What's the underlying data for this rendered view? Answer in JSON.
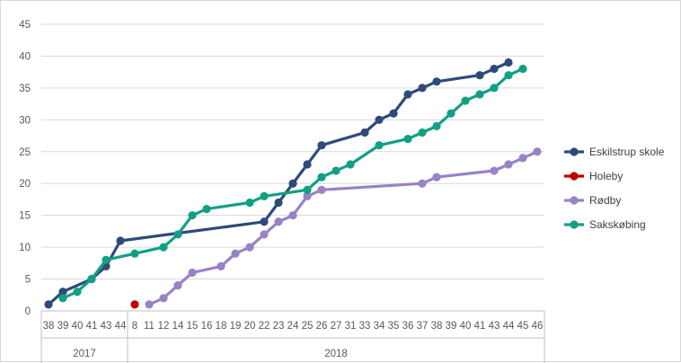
{
  "chart_data": {
    "type": "line",
    "title": "",
    "xlabel": "",
    "ylabel": "",
    "ylim": [
      0,
      45
    ],
    "yticks": [
      0,
      5,
      10,
      15,
      20,
      25,
      30,
      35,
      40,
      45
    ],
    "grid": true,
    "legend_position": "right",
    "categories": [
      "38",
      "39",
      "40",
      "41",
      "43",
      "44",
      "8",
      "11",
      "12",
      "14",
      "15",
      "16",
      "18",
      "19",
      "20",
      "22",
      "23",
      "24",
      "25",
      "26",
      "27",
      "31",
      "33",
      "34",
      "35",
      "36",
      "37",
      "38",
      "39",
      "40",
      "41",
      "43",
      "44",
      "45",
      "46"
    ],
    "year_groups": [
      {
        "label": "2017",
        "start": 0,
        "end": 5
      },
      {
        "label": "2018",
        "start": 6,
        "end": 34
      }
    ],
    "series": [
      {
        "name": "Eskilstrup skole",
        "color": "#2e4a7a",
        "values": [
          1,
          3,
          null,
          5,
          7,
          11,
          null,
          null,
          null,
          null,
          null,
          null,
          null,
          null,
          null,
          14,
          17,
          20,
          23,
          26,
          null,
          null,
          28,
          30,
          31,
          34,
          35,
          36,
          null,
          null,
          37,
          38,
          39,
          null,
          null
        ]
      },
      {
        "name": "Holeby",
        "color": "#c00000",
        "values": [
          null,
          null,
          null,
          null,
          null,
          null,
          1,
          null,
          null,
          null,
          null,
          null,
          null,
          null,
          null,
          null,
          null,
          null,
          null,
          null,
          null,
          null,
          null,
          null,
          null,
          null,
          null,
          null,
          null,
          null,
          null,
          null,
          null,
          null,
          null
        ]
      },
      {
        "name": "Rødby",
        "color": "#9982c6",
        "values": [
          null,
          null,
          null,
          null,
          null,
          null,
          null,
          1,
          2,
          4,
          6,
          null,
          7,
          9,
          10,
          12,
          14,
          15,
          18,
          19,
          null,
          null,
          null,
          null,
          null,
          null,
          20,
          21,
          null,
          null,
          null,
          22,
          23,
          24,
          25
        ]
      },
      {
        "name": "Sakskøbing",
        "color": "#12a085",
        "values": [
          null,
          2,
          3,
          5,
          8,
          null,
          9,
          null,
          10,
          12,
          15,
          16,
          null,
          null,
          17,
          18,
          null,
          null,
          19,
          21,
          22,
          23,
          null,
          26,
          null,
          27,
          28,
          29,
          31,
          33,
          34,
          35,
          37,
          38,
          null
        ]
      }
    ]
  }
}
